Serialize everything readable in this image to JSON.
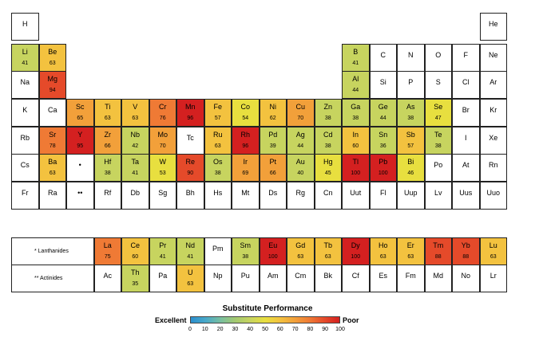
{
  "chart_data": {
    "type": "heatmap",
    "title": "Substitute Performance",
    "legend": {
      "left_label": "Excellent",
      "right_label": "Poor",
      "ticks": [
        "0",
        "10",
        "20",
        "30",
        "40",
        "50",
        "60",
        "70",
        "80",
        "90",
        "100"
      ],
      "colors": [
        "#2b8fce",
        "#49a9c9",
        "#78bfa0",
        "#a4c970",
        "#c7d45f",
        "#e8df3f",
        "#f3c23f",
        "#f2a03a",
        "#ef7a35",
        "#e54a2a",
        "#d42020"
      ]
    },
    "elements": [
      {
        "symbol": "H",
        "row": 1,
        "col": 1
      },
      {
        "symbol": "He",
        "row": 1,
        "col": 18
      },
      {
        "symbol": "Li",
        "row": 2,
        "col": 1,
        "value": 41
      },
      {
        "symbol": "Be",
        "row": 2,
        "col": 2,
        "value": 63
      },
      {
        "symbol": "B",
        "row": 2,
        "col": 13,
        "value": 41
      },
      {
        "symbol": "C",
        "row": 2,
        "col": 14
      },
      {
        "symbol": "N",
        "row": 2,
        "col": 15
      },
      {
        "symbol": "O",
        "row": 2,
        "col": 16
      },
      {
        "symbol": "F",
        "row": 2,
        "col": 17
      },
      {
        "symbol": "Ne",
        "row": 2,
        "col": 18
      },
      {
        "symbol": "Na",
        "row": 3,
        "col": 1
      },
      {
        "symbol": "Mg",
        "row": 3,
        "col": 2,
        "value": 94
      },
      {
        "symbol": "Al",
        "row": 3,
        "col": 13,
        "value": 44
      },
      {
        "symbol": "Si",
        "row": 3,
        "col": 14
      },
      {
        "symbol": "P",
        "row": 3,
        "col": 15
      },
      {
        "symbol": "S",
        "row": 3,
        "col": 16
      },
      {
        "symbol": "Cl",
        "row": 3,
        "col": 17
      },
      {
        "symbol": "Ar",
        "row": 3,
        "col": 18
      },
      {
        "symbol": "K",
        "row": 4,
        "col": 1
      },
      {
        "symbol": "Ca",
        "row": 4,
        "col": 2
      },
      {
        "symbol": "Sc",
        "row": 4,
        "col": 3,
        "value": 65
      },
      {
        "symbol": "Ti",
        "row": 4,
        "col": 4,
        "value": 63
      },
      {
        "symbol": "V",
        "row": 4,
        "col": 5,
        "value": 63
      },
      {
        "symbol": "Cr",
        "row": 4,
        "col": 6,
        "value": 76
      },
      {
        "symbol": "Mn",
        "row": 4,
        "col": 7,
        "value": 96
      },
      {
        "symbol": "Fe",
        "row": 4,
        "col": 8,
        "value": 57
      },
      {
        "symbol": "Co",
        "row": 4,
        "col": 9,
        "value": 54
      },
      {
        "symbol": "Ni",
        "row": 4,
        "col": 10,
        "value": 62
      },
      {
        "symbol": "Cu",
        "row": 4,
        "col": 11,
        "value": 70
      },
      {
        "symbol": "Zn",
        "row": 4,
        "col": 12,
        "value": 38
      },
      {
        "symbol": "Ga",
        "row": 4,
        "col": 13,
        "value": 38
      },
      {
        "symbol": "Ge",
        "row": 4,
        "col": 14,
        "value": 44
      },
      {
        "symbol": "As",
        "row": 4,
        "col": 15,
        "value": 38
      },
      {
        "symbol": "Se",
        "row": 4,
        "col": 16,
        "value": 47
      },
      {
        "symbol": "Br",
        "row": 4,
        "col": 17
      },
      {
        "symbol": "Kr",
        "row": 4,
        "col": 18
      },
      {
        "symbol": "Rb",
        "row": 5,
        "col": 1
      },
      {
        "symbol": "Sr",
        "row": 5,
        "col": 2,
        "value": 78
      },
      {
        "symbol": "Y",
        "row": 5,
        "col": 3,
        "value": 95
      },
      {
        "symbol": "Zr",
        "row": 5,
        "col": 4,
        "value": 66
      },
      {
        "symbol": "Nb",
        "row": 5,
        "col": 5,
        "value": 42
      },
      {
        "symbol": "Mo",
        "row": 5,
        "col": 6,
        "value": 70
      },
      {
        "symbol": "Tc",
        "row": 5,
        "col": 7
      },
      {
        "symbol": "Ru",
        "row": 5,
        "col": 8,
        "value": 63
      },
      {
        "symbol": "Rh",
        "row": 5,
        "col": 9,
        "value": 96
      },
      {
        "symbol": "Pd",
        "row": 5,
        "col": 10,
        "value": 39
      },
      {
        "symbol": "Ag",
        "row": 5,
        "col": 11,
        "value": 44
      },
      {
        "symbol": "Cd",
        "row": 5,
        "col": 12,
        "value": 38
      },
      {
        "symbol": "In",
        "row": 5,
        "col": 13,
        "value": 60
      },
      {
        "symbol": "Sn",
        "row": 5,
        "col": 14,
        "value": 36
      },
      {
        "symbol": "Sb",
        "row": 5,
        "col": 15,
        "value": 57
      },
      {
        "symbol": "Te",
        "row": 5,
        "col": 16,
        "value": 38
      },
      {
        "symbol": "I",
        "row": 5,
        "col": 17
      },
      {
        "symbol": "Xe",
        "row": 5,
        "col": 18
      },
      {
        "symbol": "Cs",
        "row": 6,
        "col": 1
      },
      {
        "symbol": "Ba",
        "row": 6,
        "col": 2,
        "value": 63
      },
      {
        "symbol": "•",
        "row": 6,
        "col": 3
      },
      {
        "symbol": "Hf",
        "row": 6,
        "col": 4,
        "value": 38
      },
      {
        "symbol": "Ta",
        "row": 6,
        "col": 5,
        "value": 41
      },
      {
        "symbol": "W",
        "row": 6,
        "col": 6,
        "value": 53
      },
      {
        "symbol": "Re",
        "row": 6,
        "col": 7,
        "value": 90
      },
      {
        "symbol": "Os",
        "row": 6,
        "col": 8,
        "value": 38
      },
      {
        "symbol": "Ir",
        "row": 6,
        "col": 9,
        "value": 69
      },
      {
        "symbol": "Pt",
        "row": 6,
        "col": 10,
        "value": 66
      },
      {
        "symbol": "Au",
        "row": 6,
        "col": 11,
        "value": 40
      },
      {
        "symbol": "Hg",
        "row": 6,
        "col": 12,
        "value": 45
      },
      {
        "symbol": "Tl",
        "row": 6,
        "col": 13,
        "value": 100
      },
      {
        "symbol": "Pb",
        "row": 6,
        "col": 14,
        "value": 100
      },
      {
        "symbol": "Bi",
        "row": 6,
        "col": 15,
        "value": 46
      },
      {
        "symbol": "Po",
        "row": 6,
        "col": 16
      },
      {
        "symbol": "At",
        "row": 6,
        "col": 17
      },
      {
        "symbol": "Rn",
        "row": 6,
        "col": 18
      },
      {
        "symbol": "Fr",
        "row": 7,
        "col": 1
      },
      {
        "symbol": "Ra",
        "row": 7,
        "col": 2
      },
      {
        "symbol": "••",
        "row": 7,
        "col": 3
      },
      {
        "symbol": "Rf",
        "row": 7,
        "col": 4
      },
      {
        "symbol": "Db",
        "row": 7,
        "col": 5
      },
      {
        "symbol": "Sg",
        "row": 7,
        "col": 6
      },
      {
        "symbol": "Bh",
        "row": 7,
        "col": 7
      },
      {
        "symbol": "Hs",
        "row": 7,
        "col": 8
      },
      {
        "symbol": "Mt",
        "row": 7,
        "col": 9
      },
      {
        "symbol": "Ds",
        "row": 7,
        "col": 10
      },
      {
        "symbol": "Rg",
        "row": 7,
        "col": 11
      },
      {
        "symbol": "Cn",
        "row": 7,
        "col": 12
      },
      {
        "symbol": "Uut",
        "row": 7,
        "col": 13
      },
      {
        "symbol": "Fl",
        "row": 7,
        "col": 14
      },
      {
        "symbol": "Uup",
        "row": 7,
        "col": 15
      },
      {
        "symbol": "Lv",
        "row": 7,
        "col": 16
      },
      {
        "symbol": "Uus",
        "row": 7,
        "col": 17
      },
      {
        "symbol": "Uuo",
        "row": 7,
        "col": 18
      },
      {
        "symbol": "La",
        "row": 9,
        "col": 4,
        "value": 75
      },
      {
        "symbol": "Ce",
        "row": 9,
        "col": 5,
        "value": 60
      },
      {
        "symbol": "Pr",
        "row": 9,
        "col": 6,
        "value": 41
      },
      {
        "symbol": "Nd",
        "row": 9,
        "col": 7,
        "value": 41
      },
      {
        "symbol": "Pm",
        "row": 9,
        "col": 8
      },
      {
        "symbol": "Sm",
        "row": 9,
        "col": 9,
        "value": 38
      },
      {
        "symbol": "Eu",
        "row": 9,
        "col": 10,
        "value": 100
      },
      {
        "symbol": "Gd",
        "row": 9,
        "col": 11,
        "value": 63
      },
      {
        "symbol": "Tb",
        "row": 9,
        "col": 12,
        "value": 63
      },
      {
        "symbol": "Dy",
        "row": 9,
        "col": 13,
        "value": 100
      },
      {
        "symbol": "Ho",
        "row": 9,
        "col": 14,
        "value": 63
      },
      {
        "symbol": "Er",
        "row": 9,
        "col": 15,
        "value": 63
      },
      {
        "symbol": "Tm",
        "row": 9,
        "col": 16,
        "value": 88
      },
      {
        "symbol": "Yb",
        "row": 9,
        "col": 17,
        "value": 88
      },
      {
        "symbol": "Lu",
        "row": 9,
        "col": 18,
        "value": 63
      },
      {
        "symbol": "Ac",
        "row": 10,
        "col": 4
      },
      {
        "symbol": "Th",
        "row": 10,
        "col": 5,
        "value": 35
      },
      {
        "symbol": "Pa",
        "row": 10,
        "col": 6
      },
      {
        "symbol": "U",
        "row": 10,
        "col": 7,
        "value": 63
      },
      {
        "symbol": "Np",
        "row": 10,
        "col": 8
      },
      {
        "symbol": "Pu",
        "row": 10,
        "col": 9
      },
      {
        "symbol": "Am",
        "row": 10,
        "col": 10
      },
      {
        "symbol": "Cm",
        "row": 10,
        "col": 11
      },
      {
        "symbol": "Bk",
        "row": 10,
        "col": 12
      },
      {
        "symbol": "Cf",
        "row": 10,
        "col": 13
      },
      {
        "symbol": "Es",
        "row": 10,
        "col": 14
      },
      {
        "symbol": "Fm",
        "row": 10,
        "col": 15
      },
      {
        "symbol": "Md",
        "row": 10,
        "col": 16
      },
      {
        "symbol": "No",
        "row": 10,
        "col": 17
      },
      {
        "symbol": "Lr",
        "row": 10,
        "col": 18
      }
    ],
    "series_labels": [
      {
        "text": "* Lanthanides",
        "row": 9
      },
      {
        "text": "** Actinides",
        "row": 10
      }
    ]
  }
}
